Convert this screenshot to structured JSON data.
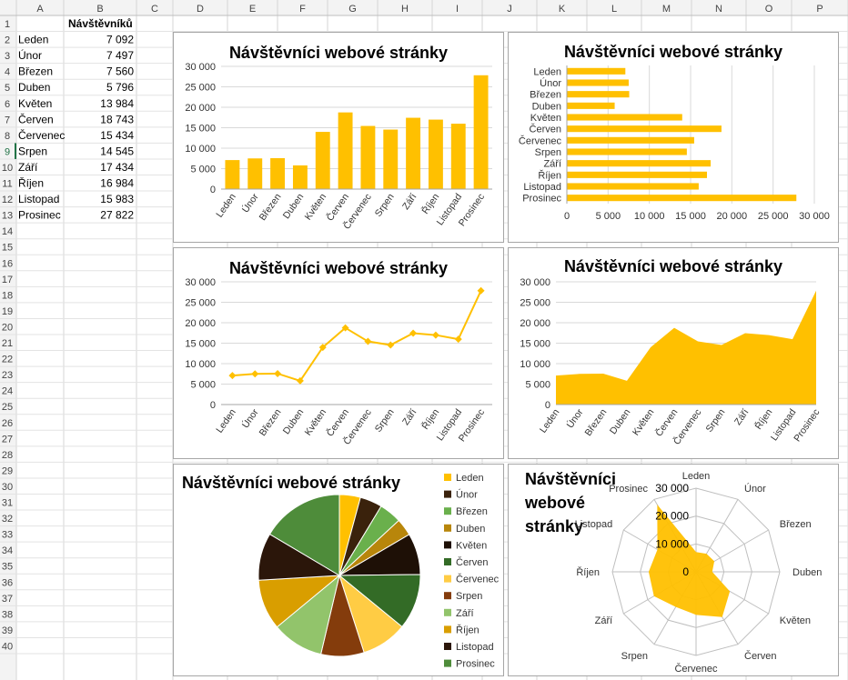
{
  "sheet": {
    "columns": [
      "A",
      "B",
      "C",
      "D",
      "E",
      "F",
      "G",
      "H",
      "I",
      "J",
      "K",
      "L",
      "M",
      "N",
      "O",
      "P"
    ],
    "row_count": 40,
    "active_row": 9,
    "header": "Návštěvníků",
    "rows": [
      {
        "month": "Leden",
        "value": "7 092"
      },
      {
        "month": "Únor",
        "value": "7 497"
      },
      {
        "month": "Březen",
        "value": "7 560"
      },
      {
        "month": "Duben",
        "value": "5 796"
      },
      {
        "month": "Květen",
        "value": "13 984"
      },
      {
        "month": "Červen",
        "value": "18 743"
      },
      {
        "month": "Červenec",
        "value": "15 434"
      },
      {
        "month": "Srpen",
        "value": "14 545"
      },
      {
        "month": "Září",
        "value": "17 434"
      },
      {
        "month": "Říjen",
        "value": "16 984"
      },
      {
        "month": "Listopad",
        "value": "15 983"
      },
      {
        "month": "Prosinec",
        "value": "27 822"
      }
    ]
  },
  "colors": {
    "bar": "#FFC000",
    "line": "#FFC000",
    "grid": "#D9D9D9",
    "axis": "#A6A6A6",
    "pie": [
      "#FFC000",
      "#3A220C",
      "#6AB04C",
      "#B8860B",
      "#1E1006",
      "#336B26",
      "#FFCC44",
      "#843C0C",
      "#92C46B",
      "#D99E00",
      "#2B160A",
      "#4E8C3A"
    ]
  },
  "chart_data": [
    {
      "type": "bar",
      "orientation": "vertical",
      "title": "Návštěvníci webové stránky",
      "categories": [
        "Leden",
        "Únor",
        "Březen",
        "Duben",
        "Květen",
        "Červen",
        "Červenec",
        "Srpen",
        "Září",
        "Říjen",
        "Listopad",
        "Prosinec"
      ],
      "values": [
        7092,
        7497,
        7560,
        5796,
        13984,
        18743,
        15434,
        14545,
        17434,
        16984,
        15983,
        27822
      ],
      "ylim": [
        0,
        30000
      ],
      "ticks": [
        "0",
        "5 000",
        "10 000",
        "15 000",
        "20 000",
        "25 000",
        "30 000"
      ],
      "grid": true
    },
    {
      "type": "bar",
      "orientation": "horizontal",
      "title": "Návštěvníci webové stránky",
      "categories": [
        "Leden",
        "Únor",
        "Březen",
        "Duben",
        "Květen",
        "Červen",
        "Červenec",
        "Srpen",
        "Září",
        "Říjen",
        "Listopad",
        "Prosinec"
      ],
      "values": [
        7092,
        7497,
        7560,
        5796,
        13984,
        18743,
        15434,
        14545,
        17434,
        16984,
        15983,
        27822
      ],
      "xlim": [
        0,
        30000
      ],
      "ticks": [
        "0",
        "5 000",
        "10 000",
        "15 000",
        "20 000",
        "25 000",
        "30 000"
      ],
      "grid": true
    },
    {
      "type": "line",
      "title": "Návštěvníci webové stránky",
      "categories": [
        "Leden",
        "Únor",
        "Březen",
        "Duben",
        "Květen",
        "Červen",
        "Červenec",
        "Srpen",
        "Září",
        "Říjen",
        "Listopad",
        "Prosinec"
      ],
      "values": [
        7092,
        7497,
        7560,
        5796,
        13984,
        18743,
        15434,
        14545,
        17434,
        16984,
        15983,
        27822
      ],
      "ylim": [
        0,
        30000
      ],
      "ticks": [
        "0",
        "5 000",
        "10 000",
        "15 000",
        "20 000",
        "25 000",
        "30 000"
      ],
      "grid": true
    },
    {
      "type": "area",
      "title": "Návštěvníci webové stránky",
      "categories": [
        "Leden",
        "Únor",
        "Březen",
        "Duben",
        "Květen",
        "Červen",
        "Červenec",
        "Srpen",
        "Září",
        "Říjen",
        "Listopad",
        "Prosinec"
      ],
      "values": [
        7092,
        7497,
        7560,
        5796,
        13984,
        18743,
        15434,
        14545,
        17434,
        16984,
        15983,
        27822
      ],
      "ylim": [
        0,
        30000
      ],
      "ticks": [
        "0",
        "5 000",
        "10 000",
        "15 000",
        "20 000",
        "25 000",
        "30 000"
      ],
      "grid": true
    },
    {
      "type": "pie",
      "title": "Návštěvníci webové stránky",
      "categories": [
        "Leden",
        "Únor",
        "Březen",
        "Duben",
        "Květen",
        "Červen",
        "Červenec",
        "Srpen",
        "Září",
        "Říjen",
        "Listopad",
        "Prosinec"
      ],
      "values": [
        7092,
        7497,
        7560,
        5796,
        13984,
        18743,
        15434,
        14545,
        17434,
        16984,
        15983,
        27822
      ],
      "legend": "right"
    },
    {
      "type": "radar",
      "title": "Návštěvníci webové stránky",
      "title_lines": [
        "Návštěvníci",
        "webové",
        "stránky"
      ],
      "categories": [
        "Leden",
        "Únor",
        "Březen",
        "Duben",
        "Květen",
        "Červen",
        "Červenec",
        "Srpen",
        "Září",
        "Říjen",
        "Listopad",
        "Prosinec"
      ],
      "values": [
        7092,
        7497,
        7560,
        5796,
        13984,
        18743,
        15434,
        14545,
        17434,
        16984,
        15983,
        27822
      ],
      "rlim": [
        0,
        30000
      ],
      "ticks": [
        "0",
        "10 000",
        "20 000",
        "30 000"
      ]
    }
  ]
}
